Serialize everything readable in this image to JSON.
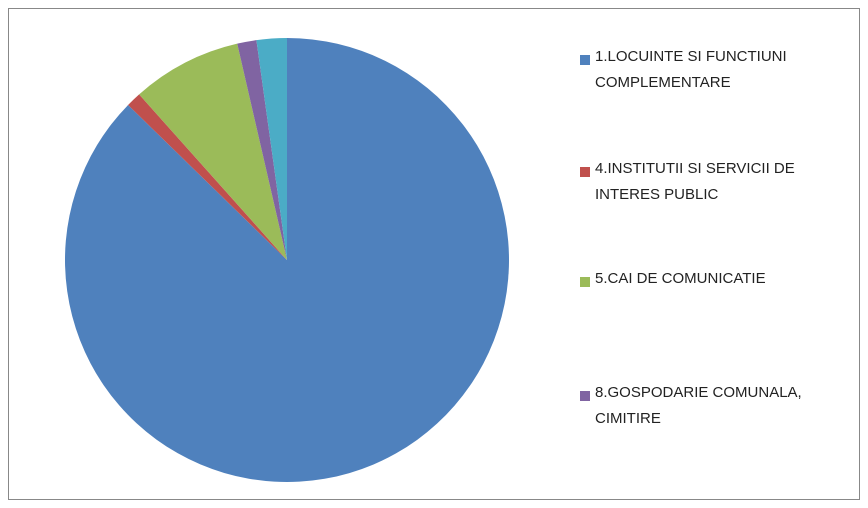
{
  "chart_data": {
    "type": "pie",
    "categories": [
      "1.LOCUINTE SI FUNCTIUNI COMPLEMENTARE",
      "4.INSTITUTII SI SERVICII DE INTERES PUBLIC",
      "5.CAI DE COMUNICATIE",
      "8.GOSPODARIE COMUNALA, CIMITIRE",
      null
    ],
    "values": [
      87.3,
      1.1,
      8.0,
      1.4,
      2.2
    ],
    "colors": [
      "#4f81bd",
      "#c0504d",
      "#9bbb59",
      "#8064a2",
      "#4bacc6"
    ],
    "legend": "right"
  }
}
